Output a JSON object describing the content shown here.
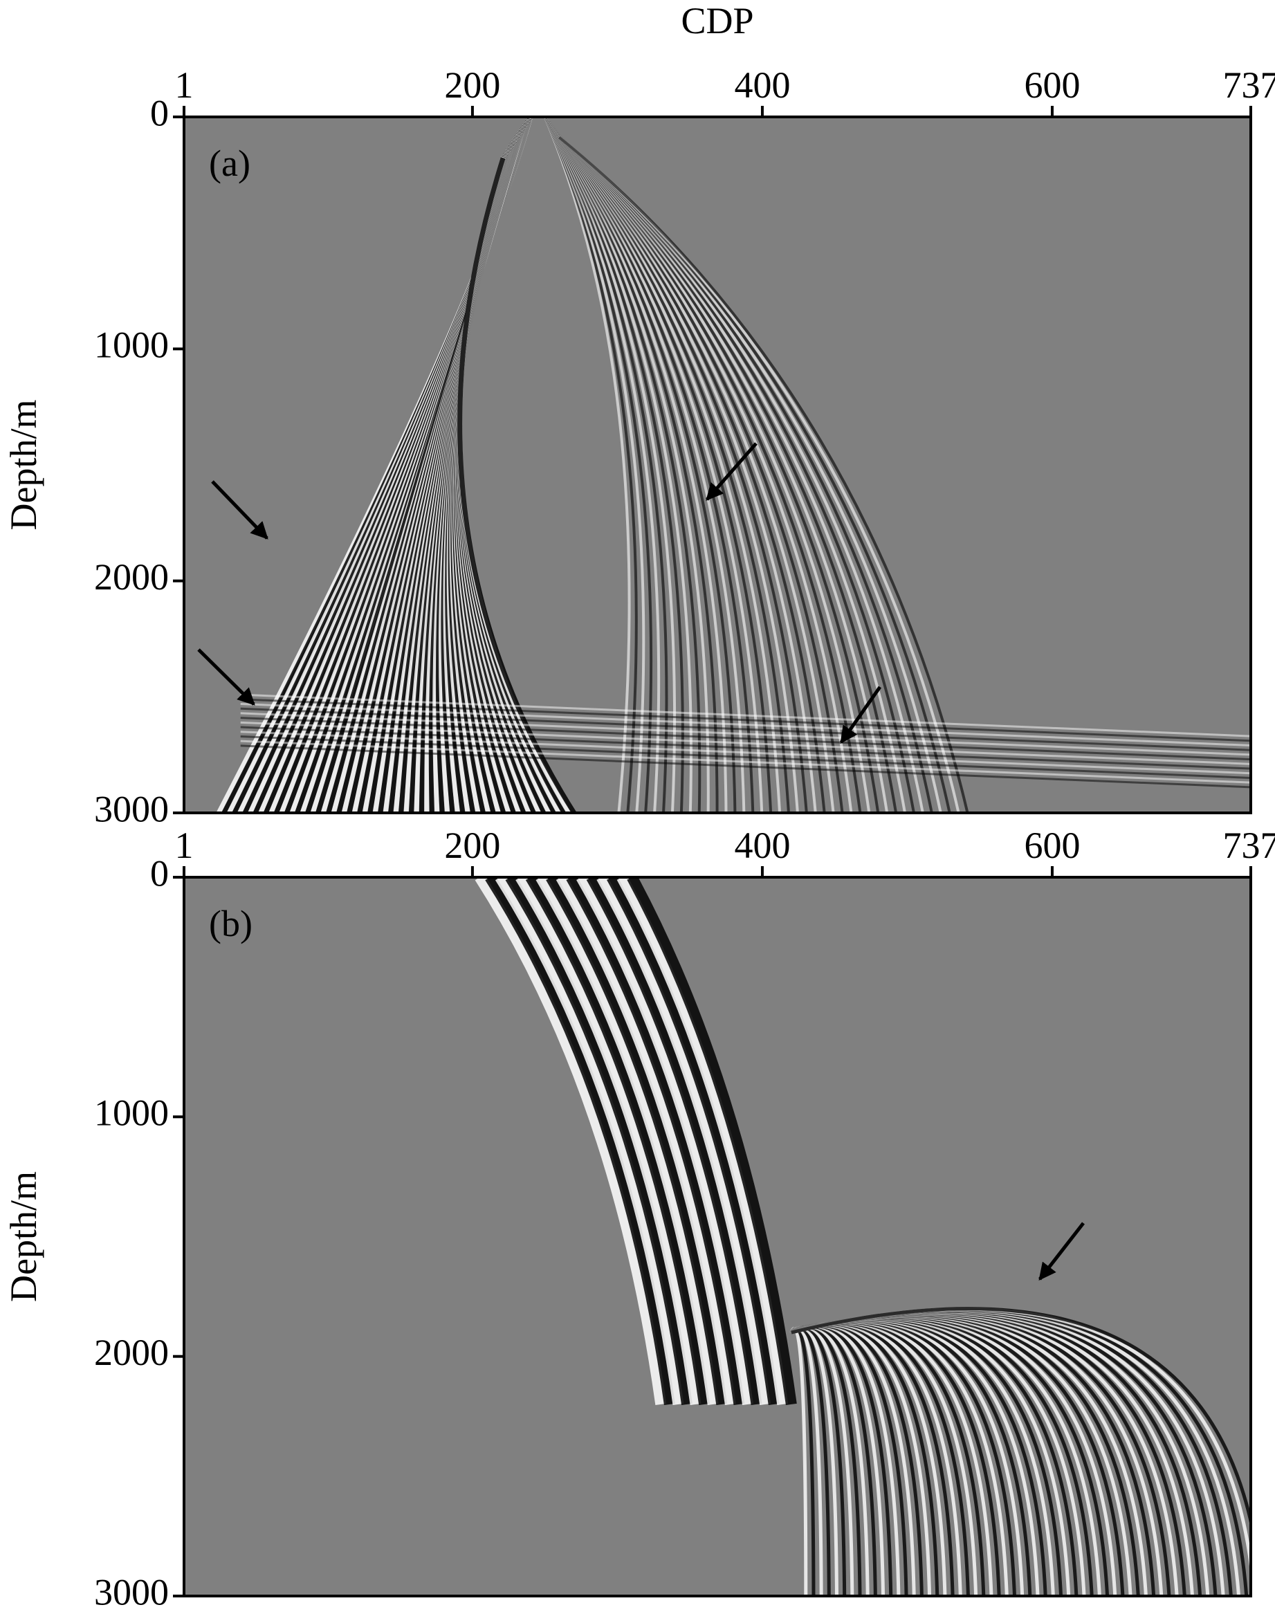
{
  "chart_data": [
    {
      "type": "image",
      "panel_label": "(a)",
      "xlabel": "CDP",
      "ylabel": "Depth/m",
      "xlim": [
        1,
        737
      ],
      "xticks": [
        1,
        200,
        400,
        600,
        737
      ],
      "ylim": [
        0,
        3000
      ],
      "yticks": [
        0,
        1000,
        2000,
        3000
      ],
      "y_inverted": true
    },
    {
      "type": "image",
      "panel_label": "(b)",
      "ylabel": "Depth/m",
      "xlim": [
        1,
        737
      ],
      "xticks": [
        1,
        200,
        400,
        600,
        737
      ],
      "ylim": [
        0,
        3000
      ],
      "yticks": [
        0,
        1000,
        2000,
        3000
      ],
      "y_inverted": true
    }
  ]
}
